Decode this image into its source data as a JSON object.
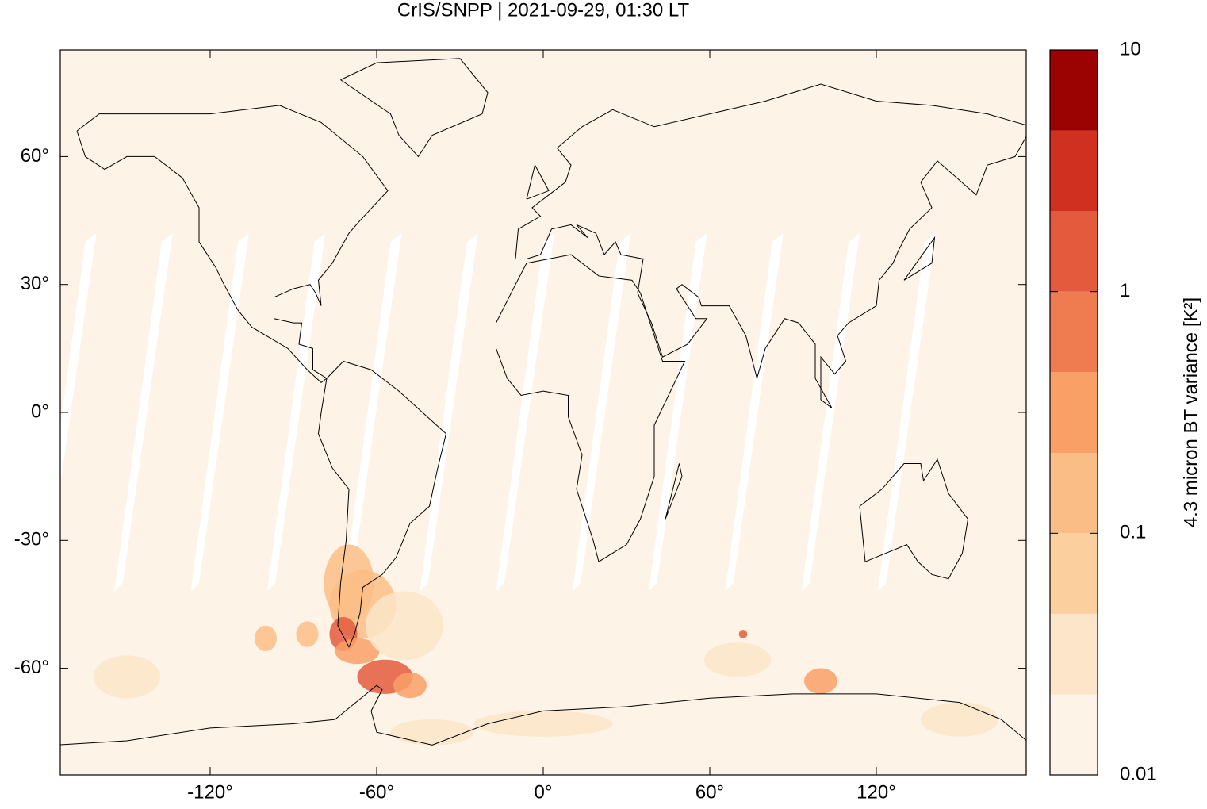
{
  "chart_data": {
    "type": "map",
    "title": "CrIS/SNPP | 2021-09-29, 01:30 LT",
    "xlim": [
      -174,
      174
    ],
    "ylim": [
      -85,
      85
    ],
    "xticks": [
      {
        "value": -120,
        "label": "-120°"
      },
      {
        "value": -60,
        "label": "-60°"
      },
      {
        "value": 0,
        "label": "0°"
      },
      {
        "value": 60,
        "label": "60°"
      },
      {
        "value": 120,
        "label": "120°"
      }
    ],
    "yticks": [
      {
        "value": -60,
        "label": "-60°"
      },
      {
        "value": -30,
        "label": "-30°"
      },
      {
        "value": 0,
        "label": "0°"
      },
      {
        "value": 30,
        "label": "30°"
      },
      {
        "value": 60,
        "label": "60°"
      }
    ],
    "colorbar": {
      "label": "4.3 micron BT variance [K²]",
      "scale": "log",
      "lim": [
        0.01,
        10
      ],
      "ticks": [
        0.01,
        0.1,
        1,
        10
      ],
      "levels": [
        0.01,
        0.0215,
        0.0464,
        0.1,
        0.215,
        0.464,
        1,
        2.15,
        4.64,
        10
      ],
      "colors": [
        "#fdf3e6",
        "#fce5c8",
        "#fbd09e",
        "#fbbd86",
        "#f9a067",
        "#ef7b50",
        "#e45a3c",
        "#cf3020",
        "#9b0202"
      ]
    }
  }
}
